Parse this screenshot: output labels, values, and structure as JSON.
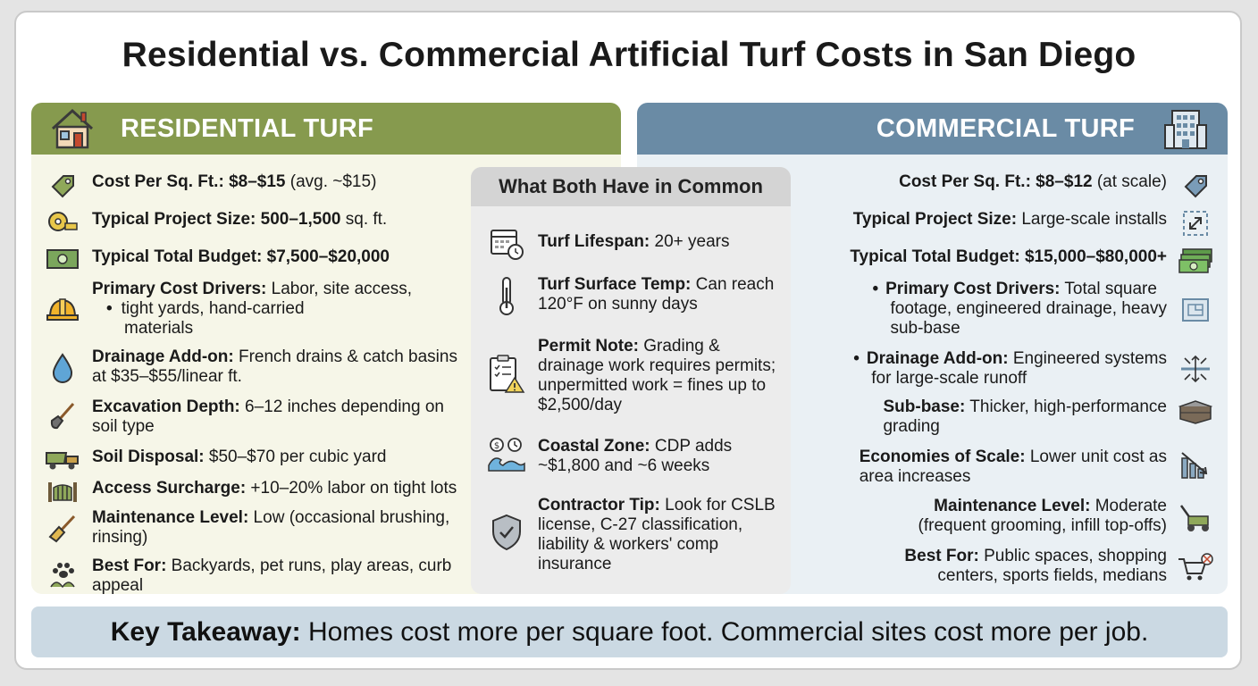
{
  "title": "Residential vs. Commercial Artificial Turf Costs in San Diego",
  "colors": {
    "residential_header": "#869a4e",
    "commercial_header": "#6a8ba5",
    "residential_panel": "#f6f6e8",
    "commercial_panel": "#eaf0f4",
    "common_panel": "#ececec",
    "takeaway_bar": "#cbd9e3"
  },
  "residential": {
    "header": "RESIDENTIAL TURF",
    "header_icon": "house-icon",
    "items": [
      {
        "icon": "price-tag-icon",
        "label": "Cost Per Sq. Ft.: $8–$15",
        "text": " (avg. ~$15)"
      },
      {
        "icon": "tape-measure-icon",
        "label": "Typical Project Size: 500–1,500",
        "text": " sq. ft."
      },
      {
        "icon": "cash-icon",
        "label": "Typical Total Budget: $7,500–$20,000",
        "text": ""
      },
      {
        "icon": "hard-hat-icon",
        "label": "Primary Cost Drivers:",
        "text": " Labor, site access,",
        "bullet": "•",
        "text2": "tight yards, hand-carried",
        "text3": "materials"
      },
      {
        "icon": "water-drop-icon",
        "label": "Drainage Add-on:",
        "text": " French drains & catch basins at $35–$55/linear ft."
      },
      {
        "icon": "shovel-icon",
        "label": "Excavation Depth:",
        "text": " 6–12 inches depending on soil type"
      },
      {
        "icon": "dump-truck-icon",
        "label": "Soil Disposal:",
        "text": " $50–$70 per cubic yard"
      },
      {
        "icon": "gate-icon",
        "label": "Access Surcharge:",
        "text": " +10–20% labor on tight lots"
      },
      {
        "icon": "broom-icon",
        "label": "Maintenance Level:",
        "text": " Low (occasional brushing, rinsing)"
      },
      {
        "icon": "paw-plant-icon",
        "label": "Best For:",
        "text": " Backyards, pet runs, play areas, curb appeal"
      }
    ]
  },
  "commercial": {
    "header": "COMMERCIAL TURF",
    "header_icon": "office-building-icon",
    "items": [
      {
        "icon": "price-tag-icon",
        "label": "Cost Per Sq. Ft.: $8–$12",
        "text": " (at scale)"
      },
      {
        "icon": "expand-arrows-icon",
        "label": "Typical Project Size:",
        "text": " Large-scale installs"
      },
      {
        "icon": "cash-stack-icon",
        "label": "Typical Total Budget: $15,000–$80,000+",
        "text": ""
      },
      {
        "icon": "blueprint-icon",
        "bullet": "•",
        "label": "Primary Cost Drivers:",
        "text": " Total square",
        "text2": "footage, engineered drainage, heavy",
        "text3": "sub-base"
      },
      {
        "icon": "drainage-arrows-icon",
        "bullet": "•",
        "label": "Drainage Add-on:",
        "text": " Engineered systems",
        "text2": "for large-scale runoff"
      },
      {
        "icon": "ground-layers-icon",
        "label": "Sub-base:",
        "text": " Thicker, high-performance",
        "text2": "grading"
      },
      {
        "icon": "bar-chart-down-icon",
        "label": "Economies of Scale:",
        "text": " Lower unit cost as",
        "text2": "area increases"
      },
      {
        "icon": "lawn-mower-icon",
        "label": "Maintenance Level:",
        "text": " Moderate",
        "text2": "(frequent grooming, infill top-offs)"
      },
      {
        "icon": "cart-ball-icon",
        "label": "Best For:",
        "text": " Public spaces, shopping",
        "text2": "centers, sports fields, medians"
      }
    ]
  },
  "common": {
    "header": "What Both Have in Common",
    "items": [
      {
        "icon": "calendar-clock-icon",
        "label": "Turf Lifespan:",
        "text": " 20+ years"
      },
      {
        "icon": "thermometer-icon",
        "label": "Turf Surface Temp:",
        "text": " Can reach 120°F on sunny days"
      },
      {
        "icon": "permit-clipboard-icon",
        "label": "Permit Note:",
        "text": " Grading & drainage work requires permits; unpermitted work = fines up to $2,500/day"
      },
      {
        "icon": "coastal-wave-icon",
        "label": "Coastal Zone:",
        "text": " CDP adds ~$1,800 and ~6 weeks"
      },
      {
        "icon": "shield-check-icon",
        "label": "Contractor Tip:",
        "text": " Look for CSLB license, C-27 classification, liability & workers' comp insurance"
      }
    ]
  },
  "takeaway": {
    "label": "Key Takeaway:",
    "text": " Homes cost more per square foot. Commercial sites cost more per job."
  }
}
